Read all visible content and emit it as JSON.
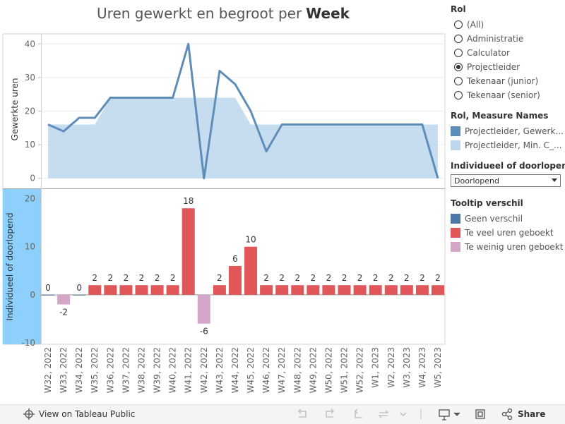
{
  "chart_data": [
    {
      "type": "line",
      "title": [
        "Uren gewerkt en begroot per",
        "Week"
      ],
      "y_label": "Gewerkte uren",
      "ylim": [
        -3,
        43
      ],
      "yticks": [
        0,
        10,
        20,
        30,
        40
      ],
      "grid": true,
      "series": [
        {
          "name": "Projectleider, Min. C_...",
          "type": "area",
          "color": "#bcd7ed",
          "values": [
            16,
            16,
            16,
            16,
            24,
            24,
            24,
            24,
            24,
            24,
            24,
            24,
            24,
            16,
            16,
            16,
            16,
            16,
            16,
            16,
            16,
            16,
            16,
            16,
            16,
            16
          ]
        },
        {
          "name": "Projectleider, Gewerk...",
          "type": "line",
          "color": "#5f8dba",
          "values": [
            16,
            14,
            18,
            18,
            24,
            24,
            24,
            24,
            24,
            40,
            0,
            32,
            28,
            20,
            8,
            16,
            16,
            16,
            16,
            16,
            16,
            16,
            16,
            16,
            16,
            0
          ]
        }
      ]
    },
    {
      "type": "bar",
      "y_label": "Individueel of doorlopend",
      "ylim": [
        -10.3,
        22
      ],
      "yticks": [
        -10,
        0,
        10,
        20
      ],
      "categories": [
        "W32, 2022",
        "W33, 2022",
        "W34, 2022",
        "W35, 2022",
        "W36, 2022",
        "W37, 2022",
        "W38, 2022",
        "W39, 2022",
        "W40, 2022",
        "W41, 2022",
        "W42, 2022",
        "W43, 2022",
        "W44, 2022",
        "W45, 2022",
        "W46, 2022",
        "W47, 2022",
        "W48, 2022",
        "W49, 2022",
        "W50, 2022",
        "W51, 2022",
        "W52, 2022",
        "W1, 2023",
        "W2, 2023",
        "W3, 2023",
        "W4, 2023",
        "W5, 2023"
      ],
      "values": [
        0,
        -2,
        0,
        2,
        2,
        2,
        2,
        2,
        2,
        18,
        -6,
        2,
        6,
        10,
        2,
        2,
        2,
        2,
        2,
        2,
        2,
        2,
        2,
        2,
        2,
        2
      ]
    }
  ],
  "filters": {
    "rol": {
      "title": "Rol",
      "options": [
        "(All)",
        "Administratie",
        "Calculator",
        "Projectleider",
        "Tekenaar (junior)",
        "Tekenaar (senior)"
      ],
      "selected": 3
    },
    "measure_legend_title": "Rol, Measure Names",
    "mode": {
      "title": "Individueel of doorlopend",
      "value": "Doorlopend"
    },
    "tooltip_legend": {
      "title": "Tooltip verschil",
      "items": [
        {
          "name": "Geen verschil",
          "color": "#4e79a7"
        },
        {
          "name": "Te veel uren geboekt",
          "color": "#e15759"
        },
        {
          "name": "Te weinig uren geboekt",
          "color": "#d4a6c8"
        }
      ]
    }
  },
  "toolbar": {
    "view": "View on Tableau Public",
    "share": "Share"
  }
}
